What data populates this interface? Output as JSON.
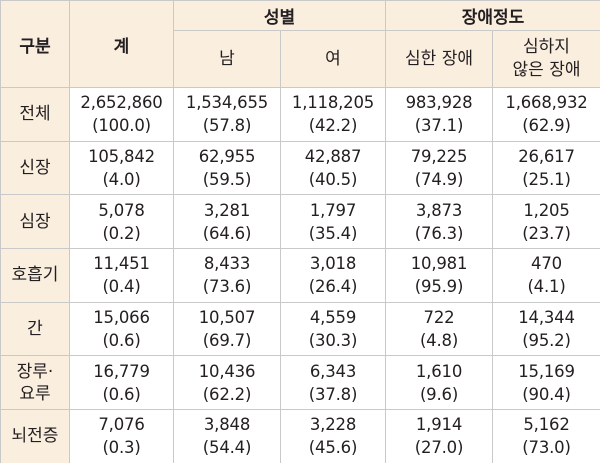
{
  "header": {
    "category": "구분",
    "total": "계",
    "gender": "성별",
    "male": "남",
    "female": "여",
    "severity": "장애정도",
    "severe": "심한 장애",
    "mild_line1": "심하지",
    "mild_line2": "않은 장애"
  },
  "rows": [
    {
      "label": "전체",
      "label2": "",
      "total": [
        "2,652,860",
        "(100.0)"
      ],
      "male": [
        "1,534,655",
        "(57.8)"
      ],
      "female": [
        "1,118,205",
        "(42.2)"
      ],
      "severe": [
        "983,928",
        "(37.1)"
      ],
      "mild": [
        "1,668,932",
        "(62.9)"
      ]
    },
    {
      "label": "신장",
      "label2": "",
      "total": [
        "105,842",
        "(4.0)"
      ],
      "male": [
        "62,955",
        "(59.5)"
      ],
      "female": [
        "42,887",
        "(40.5)"
      ],
      "severe": [
        "79,225",
        "(74.9)"
      ],
      "mild": [
        "26,617",
        "(25.1)"
      ]
    },
    {
      "label": "심장",
      "label2": "",
      "total": [
        "5,078",
        "(0.2)"
      ],
      "male": [
        "3,281",
        "(64.6)"
      ],
      "female": [
        "1,797",
        "(35.4)"
      ],
      "severe": [
        "3,873",
        "(76.3)"
      ],
      "mild": [
        "1,205",
        "(23.7)"
      ]
    },
    {
      "label": "호흡기",
      "label2": "",
      "total": [
        "11,451",
        "(0.4)"
      ],
      "male": [
        "8,433",
        "(73.6)"
      ],
      "female": [
        "3,018",
        "(26.4)"
      ],
      "severe": [
        "10,981",
        "(95.9)"
      ],
      "mild": [
        "470",
        "(4.1)"
      ]
    },
    {
      "label": "간",
      "label2": "",
      "total": [
        "15,066",
        "(0.6)"
      ],
      "male": [
        "10,507",
        "(69.7)"
      ],
      "female": [
        "4,559",
        "(30.3)"
      ],
      "severe": [
        "722",
        "(4.8)"
      ],
      "mild": [
        "14,344",
        "(95.2)"
      ]
    },
    {
      "label": "장루·",
      "label2": "요루",
      "total": [
        "16,779",
        "(0.6)"
      ],
      "male": [
        "10,436",
        "(62.2)"
      ],
      "female": [
        "6,343",
        "(37.8)"
      ],
      "severe": [
        "1,610",
        "(9.6)"
      ],
      "mild": [
        "15,169",
        "(90.4)"
      ]
    },
    {
      "label": "뇌전증",
      "label2": "",
      "total": [
        "7,076",
        "(0.3)"
      ],
      "male": [
        "3,848",
        "(54.4)"
      ],
      "female": [
        "3,228",
        "(45.6)"
      ],
      "severe": [
        "1,914",
        "(27.0)"
      ],
      "mild": [
        "5,162",
        "(73.0)"
      ]
    }
  ]
}
